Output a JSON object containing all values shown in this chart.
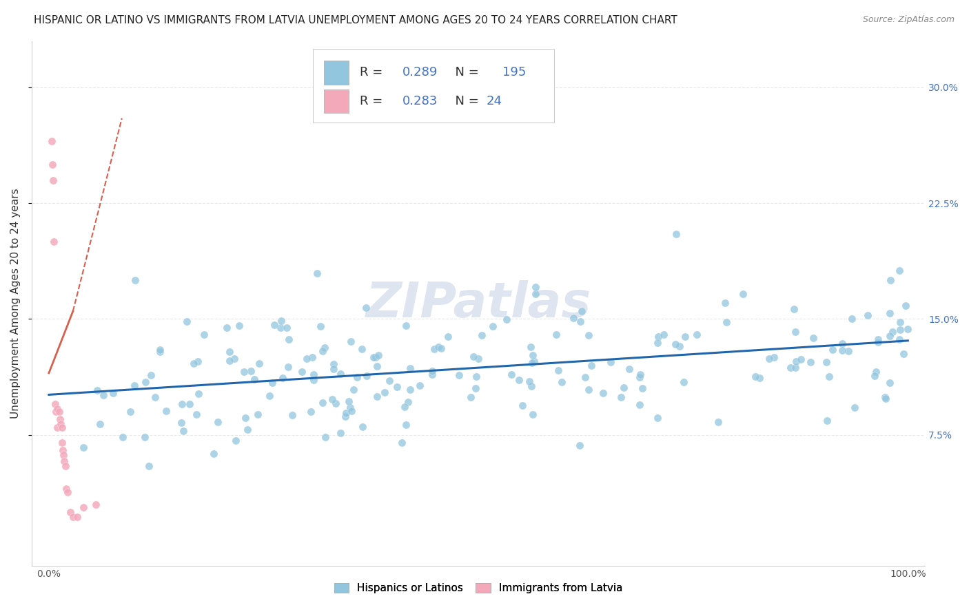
{
  "title": "HISPANIC OR LATINO VS IMMIGRANTS FROM LATVIA UNEMPLOYMENT AMONG AGES 20 TO 24 YEARS CORRELATION CHART",
  "source": "Source: ZipAtlas.com",
  "ylabel": "Unemployment Among Ages 20 to 24 years",
  "watermark": "ZIPatlas",
  "xlim": [
    -0.02,
    1.02
  ],
  "ylim": [
    -0.01,
    0.33
  ],
  "yticks": [
    0.075,
    0.15,
    0.225,
    0.3
  ],
  "yticklabels": [
    "7.5%",
    "15.0%",
    "22.5%",
    "30.0%"
  ],
  "blue_color": "#92c5de",
  "pink_color": "#f4a9bb",
  "blue_line_color": "#2166ac",
  "pink_line_color": "#d6604d",
  "legend_R1": "0.289",
  "legend_N1": "195",
  "legend_R2": "0.283",
  "legend_N2": "24",
  "label1": "Hispanics or Latinos",
  "label2": "Immigrants from Latvia",
  "blue_trend_y_start": 0.101,
  "blue_trend_y_end": 0.136,
  "pink_trend_solid_x0": 0.0,
  "pink_trend_solid_y0": 0.115,
  "pink_trend_solid_x1": 0.028,
  "pink_trend_solid_y1": 0.155,
  "pink_trend_dash_x0": 0.028,
  "pink_trend_dash_y0": 0.155,
  "pink_trend_dash_x1": 0.085,
  "pink_trend_dash_y1": 0.28,
  "title_fontsize": 11,
  "axis_label_fontsize": 11,
  "tick_fontsize": 10,
  "legend_fontsize": 13,
  "watermark_fontsize": 52,
  "watermark_color": "#c8d4e8",
  "watermark_alpha": 0.6,
  "background_color": "#ffffff",
  "grid_color": "#e8e8e8",
  "right_tick_color": "#4472c4",
  "num_blue": 195,
  "num_pink": 24,
  "random_seed": 42
}
